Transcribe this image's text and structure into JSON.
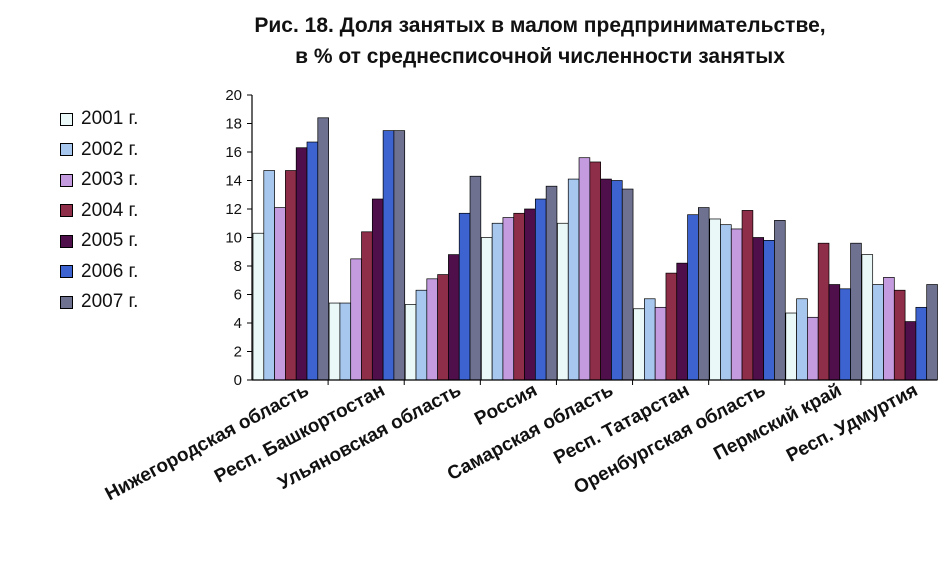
{
  "chart_data": {
    "type": "bar",
    "title": "Рис. 18. Доля занятых в малом предпринимательстве,",
    "subtitle": "в % от среднесписочной численности занятых",
    "xlabel": "",
    "ylabel": "",
    "ylim": [
      0,
      20
    ],
    "yticks": [
      "0",
      "2",
      "4",
      "6",
      "8",
      "10",
      "12",
      "14",
      "16",
      "18",
      "20"
    ],
    "grid": false,
    "legend_position": "left",
    "categories": [
      "Нижегородская область",
      "Респ. Башкортостан",
      "Ульяновская область",
      "Россия",
      "Самарская область",
      "Респ. Татарстан",
      "Оренбургская область",
      "Пермский край",
      "Респ. Удмуртия"
    ],
    "series": [
      {
        "name": "2001 г.",
        "color": "#eaf8f8",
        "values": [
          10.3,
          5.4,
          5.3,
          10.0,
          11.0,
          5.0,
          11.3,
          4.7,
          8.8
        ]
      },
      {
        "name": "2002 г.",
        "color": "#a7c7ee",
        "values": [
          14.7,
          5.4,
          6.3,
          11.0,
          14.1,
          5.7,
          10.9,
          5.7,
          6.7
        ]
      },
      {
        "name": "2003 г.",
        "color": "#c59be0",
        "values": [
          12.1,
          8.5,
          7.1,
          11.4,
          15.6,
          5.1,
          10.6,
          4.4,
          7.2
        ]
      },
      {
        "name": "2004 г.",
        "color": "#8e2e48",
        "values": [
          14.7,
          10.4,
          7.4,
          11.7,
          15.3,
          7.5,
          11.9,
          9.6,
          6.3
        ]
      },
      {
        "name": "2005 г.",
        "color": "#4e0f4a",
        "values": [
          16.3,
          12.7,
          8.8,
          12.0,
          14.1,
          8.2,
          10.0,
          6.7,
          4.1
        ]
      },
      {
        "name": "2006 г.",
        "color": "#3c63d0",
        "values": [
          16.7,
          17.5,
          11.7,
          12.7,
          14.0,
          11.6,
          9.8,
          6.4,
          5.1
        ]
      },
      {
        "name": "2007 г.",
        "color": "#6e7190",
        "values": [
          18.4,
          17.5,
          14.3,
          13.6,
          13.4,
          12.1,
          11.2,
          9.6,
          6.7
        ]
      }
    ]
  }
}
